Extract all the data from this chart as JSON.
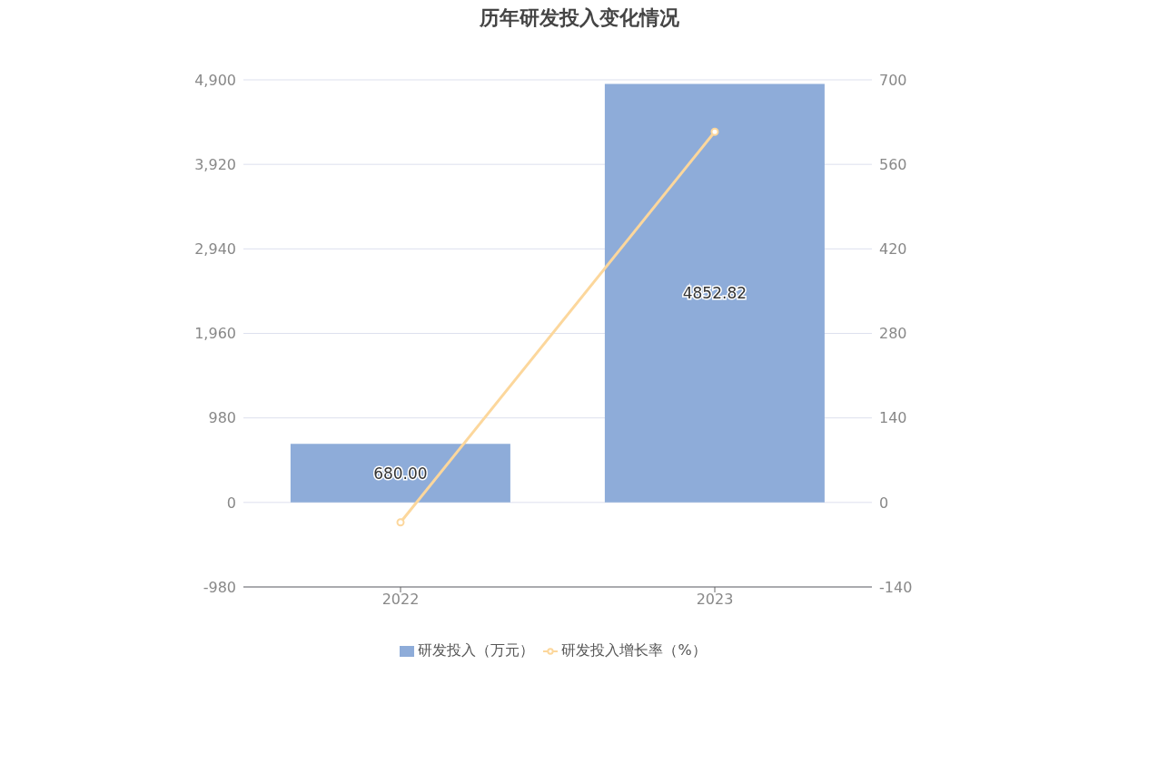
{
  "chart_data": {
    "type": "bar",
    "title": "历年研发投入变化情况",
    "categories": [
      "2022",
      "2023"
    ],
    "series": [
      {
        "name": "研发投入（万元）",
        "color": "#8eacd9",
        "values": [
          680,
          4852.82
        ],
        "value_labels": [
          "680.00",
          "4852.82"
        ]
      },
      {
        "name": "研发投入增长率（%）",
        "type": "line",
        "axis": "y2",
        "color": "#fcd79c",
        "values": [
          -33,
          614
        ]
      }
    ],
    "ylim": [
      -980,
      4900
    ],
    "yticks": [
      {
        "value": -980,
        "label": "-980"
      },
      {
        "value": 0,
        "label": "0"
      },
      {
        "value": 980,
        "label": "980"
      },
      {
        "value": 1960,
        "label": "1,960"
      },
      {
        "value": 2940,
        "label": "2,940"
      },
      {
        "value": 3920,
        "label": "3,920"
      },
      {
        "value": 4900,
        "label": "4,900"
      }
    ],
    "y2lim": [
      -140,
      700
    ],
    "y2ticks": [
      -140,
      0,
      140,
      280,
      420,
      560,
      700
    ],
    "grid": "y",
    "legend": "bottom",
    "marker": "circle"
  }
}
